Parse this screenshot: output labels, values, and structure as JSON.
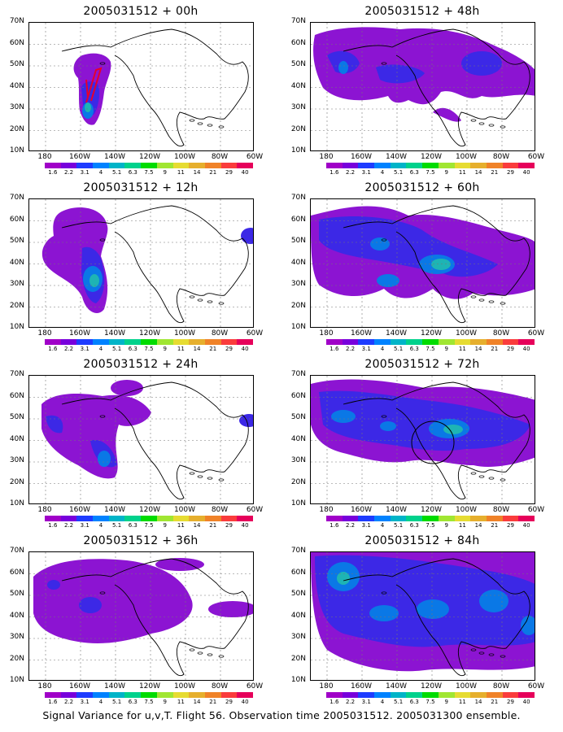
{
  "lat_labels": [
    "70N",
    "60N",
    "50N",
    "40N",
    "30N",
    "20N",
    "10N"
  ],
  "lon_labels": [
    "180",
    "160W",
    "140W",
    "120W",
    "100W",
    "80W",
    "60W"
  ],
  "colorbar": {
    "labels": [
      "1.6",
      "2.2",
      "3.1",
      "4",
      "5.1",
      "6.3",
      "7.5",
      "9",
      "11",
      "14",
      "21",
      "29",
      "40"
    ],
    "colors": [
      "#a000c8",
      "#7800dc",
      "#1e3cff",
      "#0082ff",
      "#00b4c8",
      "#00d28c",
      "#00dc00",
      "#a0e632",
      "#e6dc32",
      "#e6af2d",
      "#f08228",
      "#fa3c3c",
      "#e6005a"
    ]
  },
  "panels": [
    {
      "title": "2005031512 + 00h"
    },
    {
      "title": "2005031512 + 48h"
    },
    {
      "title": "2005031512 + 12h"
    },
    {
      "title": "2005031512 + 60h"
    },
    {
      "title": "2005031512 + 24h"
    },
    {
      "title": "2005031512 + 72h"
    },
    {
      "title": "2005031512 + 36h"
    },
    {
      "title": "2005031512 + 84h"
    }
  ],
  "caption": "Signal Variance for u,v,T. Flight 56. Observation time 2005031512. 2005031300 ensemble."
}
